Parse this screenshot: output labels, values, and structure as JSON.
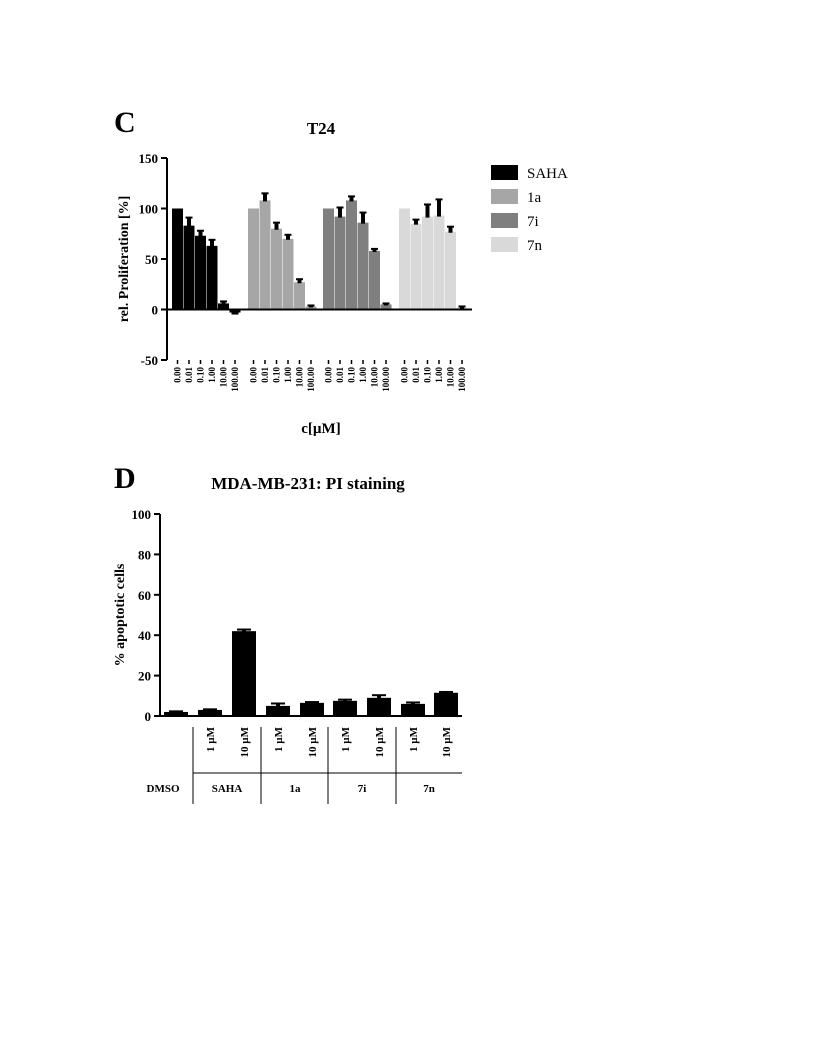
{
  "panels": {
    "c_letter": "C",
    "d_letter": "D"
  },
  "chart_data": [
    {
      "type": "bar",
      "title": "T24",
      "xlabel": "c[µM]",
      "ylabel": "rel. Proliferation [%]",
      "ylim": [
        -50,
        150
      ],
      "yticks": [
        -50,
        0,
        50,
        100,
        150
      ],
      "legend_position": "right",
      "categories": [
        "0.00",
        "0.01",
        "0.10",
        "1.00",
        "10.00",
        "100.00"
      ],
      "series": [
        {
          "name": "SAHA",
          "color": "#000000",
          "values": [
            100,
            83,
            73,
            63,
            6,
            -3
          ],
          "errors": [
            0,
            8,
            5,
            6,
            2,
            1
          ]
        },
        {
          "name": "1a",
          "color": "#a6a6a6",
          "values": [
            100,
            108,
            80,
            70,
            27,
            3
          ],
          "errors": [
            0,
            7,
            6,
            4,
            3,
            1
          ]
        },
        {
          "name": "7i",
          "color": "#7f7f7f",
          "values": [
            100,
            92,
            108,
            86,
            58,
            5
          ],
          "errors": [
            0,
            9,
            4,
            10,
            2,
            1
          ]
        },
        {
          "name": "7n",
          "color": "#d9d9d9",
          "values": [
            100,
            85,
            92,
            93,
            77,
            2
          ],
          "errors": [
            0,
            4,
            12,
            16,
            5,
            1
          ]
        }
      ]
    },
    {
      "type": "bar",
      "title": "MDA-MB-231: PI staining",
      "ylabel": "% apoptotic cells",
      "ylim": [
        0,
        100
      ],
      "yticks": [
        0,
        20,
        40,
        60,
        80,
        100
      ],
      "bar_color": "#000000",
      "bars": [
        {
          "group": "DMSO",
          "dose": "",
          "value": 2,
          "error": 0.3
        },
        {
          "group": "SAHA",
          "dose": "1 µM",
          "value": 3,
          "error": 0.3
        },
        {
          "group": "SAHA",
          "dose": "10 µM",
          "value": 42,
          "error": 0.8
        },
        {
          "group": "1a",
          "dose": "1 µM",
          "value": 5,
          "error": 1.2
        },
        {
          "group": "1a",
          "dose": "10 µM",
          "value": 6.5,
          "error": 0.4
        },
        {
          "group": "7i",
          "dose": "1 µM",
          "value": 7.5,
          "error": 0.6
        },
        {
          "group": "7i",
          "dose": "10 µM",
          "value": 9,
          "error": 1.3
        },
        {
          "group": "7n",
          "dose": "1 µM",
          "value": 6,
          "error": 0.7
        },
        {
          "group": "7n",
          "dose": "10 µM",
          "value": 11.5,
          "error": 0.4
        }
      ],
      "groups": [
        "DMSO",
        "SAHA",
        "1a",
        "7i",
        "7n"
      ]
    }
  ]
}
